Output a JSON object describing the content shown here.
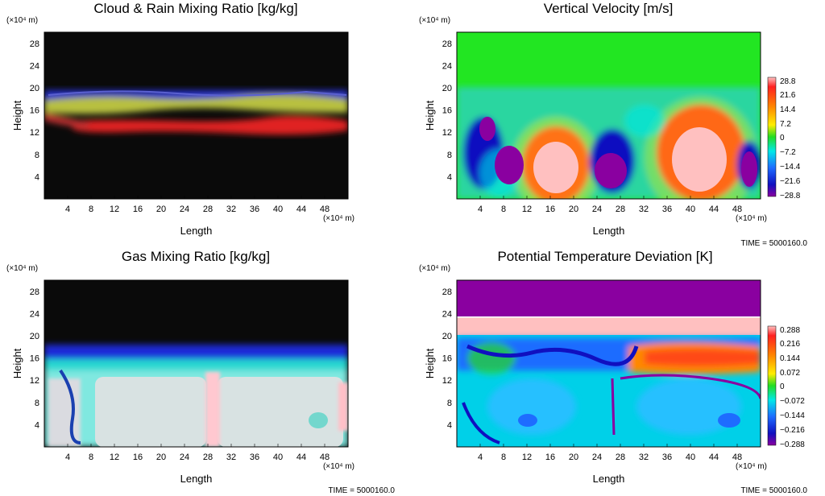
{
  "time_label": "TIME = 5000160.0",
  "axis_unit": "(×10⁴ m)",
  "xlabel": "Length",
  "ylabel": "Height",
  "xticks": [
    "4",
    "8",
    "12",
    "16",
    "20",
    "24",
    "28",
    "32",
    "36",
    "40",
    "44",
    "48"
  ],
  "yticks": [
    "4",
    "8",
    "12",
    "16",
    "20",
    "24",
    "28"
  ],
  "chart_data": [
    {
      "type": "heatmap",
      "title": "Cloud & Rain Mixing Ratio [kg/kg]",
      "xlabel": "Length",
      "ylabel": "Height",
      "x_unit": "×10⁴ m",
      "y_unit": "×10⁴ m",
      "xlim": [
        0,
        52
      ],
      "ylim": [
        0,
        30
      ],
      "colorbar": null,
      "time": null,
      "description_bands": [
        {
          "field": "cloud (blue/yellow)",
          "y_range": [
            12,
            19
          ]
        },
        {
          "field": "rain (red)",
          "y_range": [
            11,
            15
          ]
        }
      ]
    },
    {
      "type": "heatmap",
      "title": "Vertical Velocity [m/s]",
      "xlabel": "Length",
      "ylabel": "Height",
      "x_unit": "×10⁴ m",
      "y_unit": "×10⁴ m",
      "xlim": [
        0,
        52
      ],
      "ylim": [
        0,
        30
      ],
      "colorbar": {
        "ticks": [
          "28.8",
          "21.6",
          "14.4",
          "7.2",
          "0",
          "−7.2",
          "−14.4",
          "−21.6",
          "−28.8"
        ],
        "range": [
          -28.8,
          28.8
        ]
      },
      "time": "TIME = 5000160.0"
    },
    {
      "type": "heatmap",
      "title": "Gas Mixing Ratio [kg/kg]",
      "xlabel": "Length",
      "ylabel": "Height",
      "x_unit": "×10⁴ m",
      "y_unit": "×10⁴ m",
      "xlim": [
        0,
        52
      ],
      "ylim": [
        0,
        30
      ],
      "colorbar": null,
      "time": "TIME = 5000160.0"
    },
    {
      "type": "heatmap",
      "title": "Potential Temperature Deviation [K]",
      "xlabel": "Length",
      "ylabel": "Height",
      "x_unit": "×10⁴ m",
      "y_unit": "×10⁴ m",
      "xlim": [
        0,
        52
      ],
      "ylim": [
        0,
        30
      ],
      "colorbar": {
        "ticks": [
          "0.288",
          "0.216",
          "0.144",
          "0.072",
          "0",
          "−0.072",
          "−0.144",
          "−0.216",
          "−0.288"
        ],
        "range": [
          -0.288,
          0.288
        ]
      },
      "time": "TIME = 5000160.0"
    }
  ]
}
